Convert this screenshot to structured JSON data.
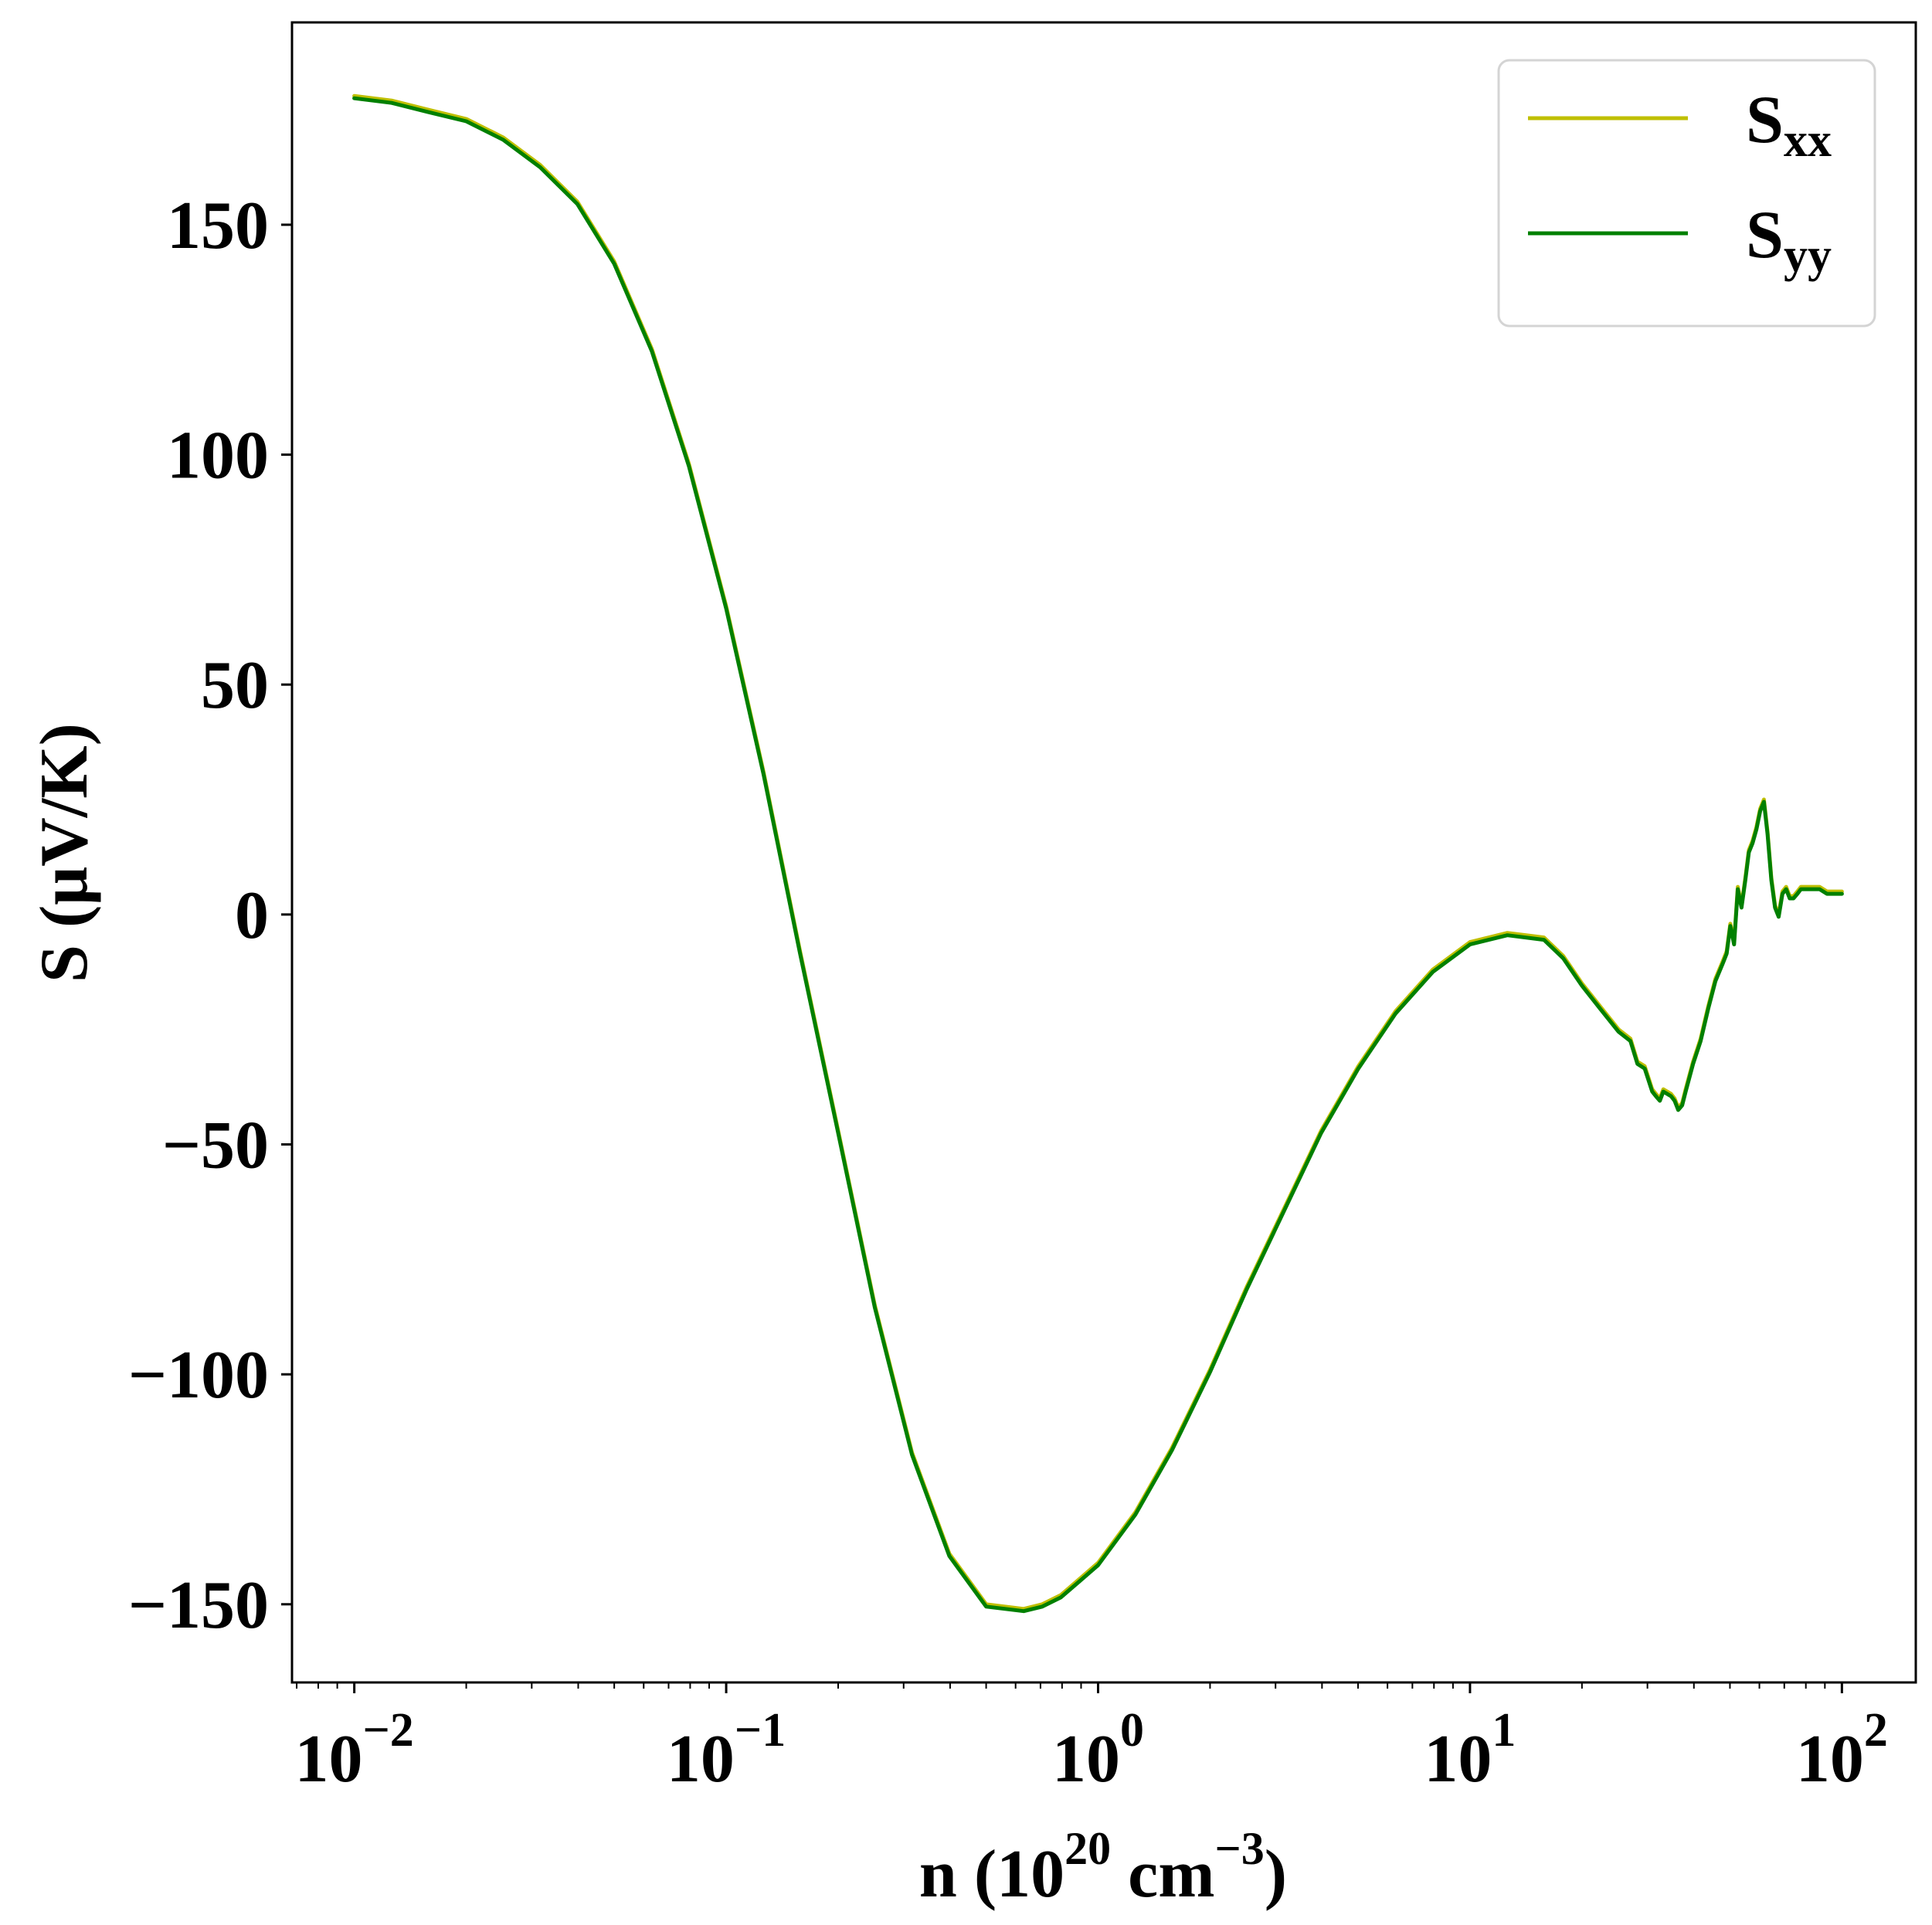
{
  "chart_data": {
    "type": "line",
    "xlabel": {
      "prefix": "n (10",
      "sup1": "20",
      "mid": " cm",
      "sup2": "−3",
      "suffix": ")"
    },
    "ylabel": "S (μV/K)",
    "xscale": "log",
    "xlim": [
      0.0068,
      158
    ],
    "ylim": [
      -167,
      194
    ],
    "yticks": [
      -150,
      -100,
      -50,
      0,
      50,
      100,
      150
    ],
    "ytick_labels": [
      "−150",
      "−100",
      "−50",
      "0",
      "50",
      "100",
      "150"
    ],
    "xticks": [
      0.01,
      0.1,
      1,
      10,
      100
    ],
    "xtick_labels": [
      {
        "base": "10",
        "exp": "−2"
      },
      {
        "base": "10",
        "exp": "−1"
      },
      {
        "base": "10",
        "exp": "0"
      },
      {
        "base": "10",
        "exp": "1"
      },
      {
        "base": "10",
        "exp": "2"
      }
    ],
    "grid": false,
    "legend_position": "top-right",
    "colors": {
      "Sxx": "#bfbf00",
      "Syy": "#008000"
    },
    "series": [
      {
        "id": "Sxx",
        "name": {
          "main": "S",
          "sub": "xx"
        },
        "color": "#bfbf00",
        "x": [
          0.01,
          0.0126,
          0.0158,
          0.02,
          0.0251,
          0.0316,
          0.0398,
          0.05,
          0.0631,
          0.0794,
          0.1,
          0.126,
          0.158,
          0.2,
          0.251,
          0.316,
          0.398,
          0.5,
          0.631,
          0.708,
          0.794,
          1.0,
          1.26,
          1.58,
          2.0,
          2.51,
          3.16,
          3.98,
          5.01,
          6.31,
          7.94,
          10.0,
          12.6,
          15.8,
          17.8,
          20.0,
          22.4,
          25.1,
          27.0,
          28.2,
          29.5,
          30.9,
          31.6,
          32.4,
          33.1,
          34.7,
          35.5,
          36.3,
          37.2,
          38.0,
          39.8,
          41.7,
          43.7,
          45.7,
          47.9,
          49.0,
          50.1,
          51.3,
          52.5,
          53.7,
          55.0,
          56.2,
          57.5,
          58.9,
          60.3,
          61.7,
          63.1,
          64.6,
          66.1,
          67.6,
          69.2,
          70.8,
          72.4,
          74.1,
          75.9,
          77.6,
          79.4,
          83.2,
          87.1,
          91.2,
          95.5,
          100.0
        ],
        "y": [
          178,
          177,
          175,
          173,
          169,
          163,
          155,
          142,
          123,
          98,
          67,
          31,
          -8,
          -47,
          -85,
          -117,
          -139,
          -150,
          -151,
          -150,
          -148,
          -141,
          -130,
          -116,
          -99,
          -81,
          -64,
          -47,
          -33,
          -21,
          -12,
          -6,
          -4,
          -5,
          -9,
          -15,
          -20,
          -25,
          -27,
          -32,
          -33,
          -38,
          -39,
          -40,
          -38,
          -39,
          -40,
          -42,
          -41,
          -38,
          -32,
          -27,
          -20,
          -14,
          -10,
          -8,
          -2,
          -6,
          6,
          2,
          8,
          14,
          16,
          19,
          23,
          25,
          18,
          8,
          2,
          0,
          5,
          6,
          4,
          4,
          5,
          6,
          6,
          6,
          6,
          5,
          5,
          5
        ]
      },
      {
        "id": "Syy",
        "name": {
          "main": "S",
          "sub": "yy"
        },
        "color": "#008000",
        "x": [
          0.01,
          0.0126,
          0.0158,
          0.02,
          0.0251,
          0.0316,
          0.0398,
          0.05,
          0.0631,
          0.0794,
          0.1,
          0.126,
          0.158,
          0.2,
          0.251,
          0.316,
          0.398,
          0.5,
          0.631,
          0.708,
          0.794,
          1.0,
          1.26,
          1.58,
          2.0,
          2.51,
          3.16,
          3.98,
          5.01,
          6.31,
          7.94,
          10.0,
          12.6,
          15.8,
          17.8,
          20.0,
          22.4,
          25.1,
          27.0,
          28.2,
          29.5,
          30.9,
          31.6,
          32.4,
          33.1,
          34.7,
          35.5,
          36.3,
          37.2,
          38.0,
          39.8,
          41.7,
          43.7,
          45.7,
          47.9,
          49.0,
          50.1,
          51.3,
          52.5,
          53.7,
          55.0,
          56.2,
          57.5,
          58.9,
          60.3,
          61.7,
          63.1,
          64.6,
          66.1,
          67.6,
          69.2,
          70.8,
          72.4,
          74.1,
          75.9,
          77.6,
          79.4,
          83.2,
          87.1,
          91.2,
          95.5,
          100.0
        ],
        "y": [
          177.5,
          176.5,
          174.5,
          172.5,
          168.5,
          162.5,
          154.5,
          141.5,
          122.5,
          97.5,
          66.5,
          30.5,
          -8.5,
          -47.5,
          -85.5,
          -117.5,
          -139.5,
          -150.5,
          -151.5,
          -150.5,
          -148.5,
          -141.5,
          -130.5,
          -116.5,
          -99.5,
          -81.5,
          -64.5,
          -47.5,
          -33.5,
          -21.5,
          -12.5,
          -6.5,
          -4.5,
          -5.5,
          -9.5,
          -15.5,
          -20.5,
          -25.5,
          -27.5,
          -32.5,
          -33.5,
          -38.5,
          -39.5,
          -40.5,
          -38.5,
          -39.5,
          -40.5,
          -42.5,
          -41.5,
          -38.5,
          -32.5,
          -27.5,
          -20.5,
          -14.5,
          -10.5,
          -8.5,
          -2.5,
          -6.5,
          5.5,
          1.5,
          7.5,
          13.5,
          15.5,
          18.5,
          22.5,
          24.5,
          17.5,
          7.5,
          1.5,
          -0.5,
          4.5,
          5.5,
          3.5,
          3.5,
          4.5,
          5.5,
          5.5,
          5.5,
          5.5,
          4.5,
          4.5,
          4.5
        ]
      }
    ]
  }
}
